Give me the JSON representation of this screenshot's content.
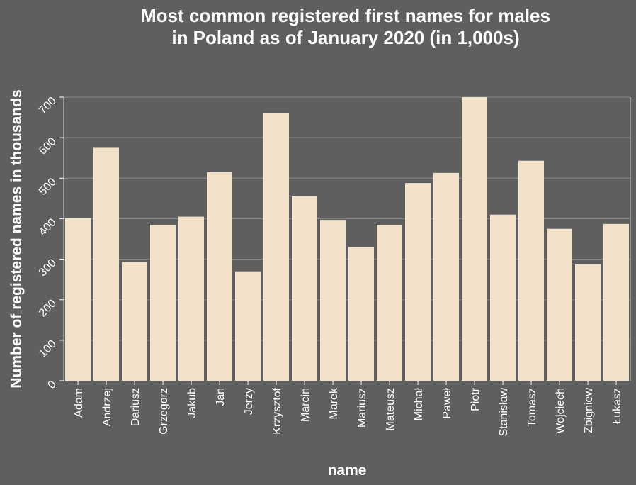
{
  "chart_data": {
    "type": "bar",
    "title_lines": [
      "Most common registered first names for males",
      "in Poland as of January 2020 (in 1,000s)"
    ],
    "xlabel": "name",
    "ylabel": "Number of registered names in thousands",
    "ylim": [
      0,
      700
    ],
    "yticks": [
      0,
      100,
      200,
      300,
      400,
      500,
      600,
      700
    ],
    "grid": true,
    "bar_color": "#f2e2c9",
    "background_color": "#5f5f5f",
    "categories": [
      "Adam",
      "Andrzej",
      "Dariusz",
      "Grzegorz",
      "Jakub",
      "Jan",
      "Jerzy",
      "Krzysztof",
      "Marcin",
      "Marek",
      "Mariusz",
      "Mateusz",
      "Michał",
      "Paweł",
      "Piotr",
      "Stanisław",
      "Tomasz",
      "Wojciech",
      "Zbigniew",
      "Łukasz"
    ],
    "values": [
      401,
      575,
      293,
      385,
      405,
      515,
      270,
      660,
      455,
      397,
      330,
      385,
      488,
      513,
      700,
      410,
      543,
      375,
      287,
      387
    ]
  }
}
